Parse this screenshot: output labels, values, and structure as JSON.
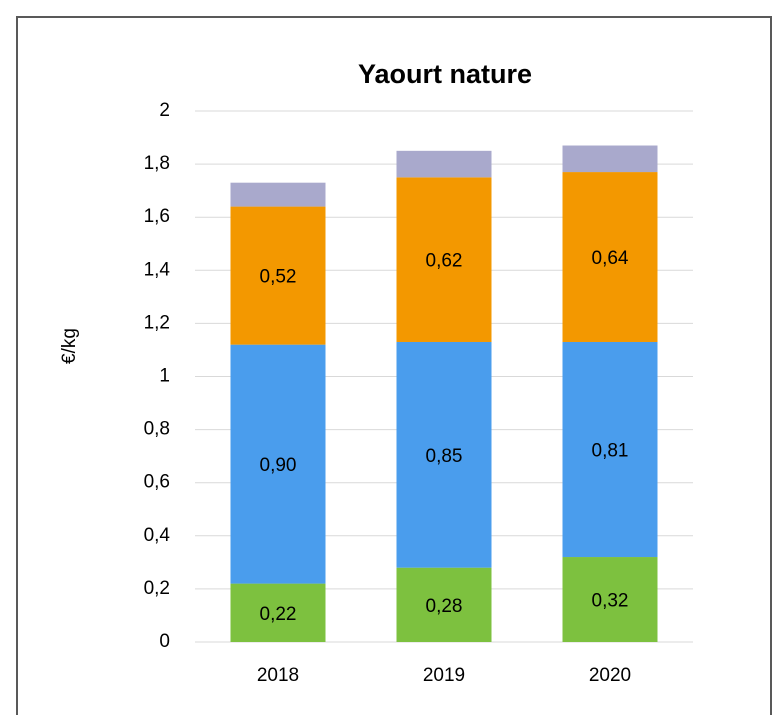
{
  "chart_data": {
    "type": "stacked-bar",
    "title": "Yaourt nature",
    "y_label": "€/kg",
    "categories": [
      "2018",
      "2019",
      "2020"
    ],
    "series": [
      {
        "color": "#7dc13f",
        "values": [
          0.22,
          0.28,
          0.32
        ],
        "value_labels": [
          "0,22",
          "0,28",
          "0,32"
        ]
      },
      {
        "color": "#4a9ded",
        "values": [
          0.9,
          0.85,
          0.81
        ],
        "value_labels": [
          "0,90",
          "0,85",
          "0,81"
        ]
      },
      {
        "color": "#f39800",
        "values": [
          0.52,
          0.62,
          0.64
        ],
        "value_labels": [
          "0,52",
          "0,62",
          "0,64"
        ]
      },
      {
        "color": "#a9a9cc",
        "values": [
          0.09,
          0.1,
          0.1
        ]
      }
    ],
    "ylim": [
      0,
      2
    ],
    "yticks": [
      0,
      {
        "value": 0.2,
        "label": "0,2"
      },
      {
        "value": 0.4,
        "label": "0,4"
      },
      {
        "value": 0.6,
        "label": "0,6"
      },
      {
        "value": 0.8,
        "label": "0,8"
      },
      1,
      {
        "value": 1.2,
        "label": "1,2"
      },
      {
        "value": 1.4,
        "label": "1,4"
      },
      {
        "value": 1.6,
        "label": "1,6"
      },
      {
        "value": 1.8,
        "label": "1,8"
      },
      2
    ],
    "grid": true
  }
}
